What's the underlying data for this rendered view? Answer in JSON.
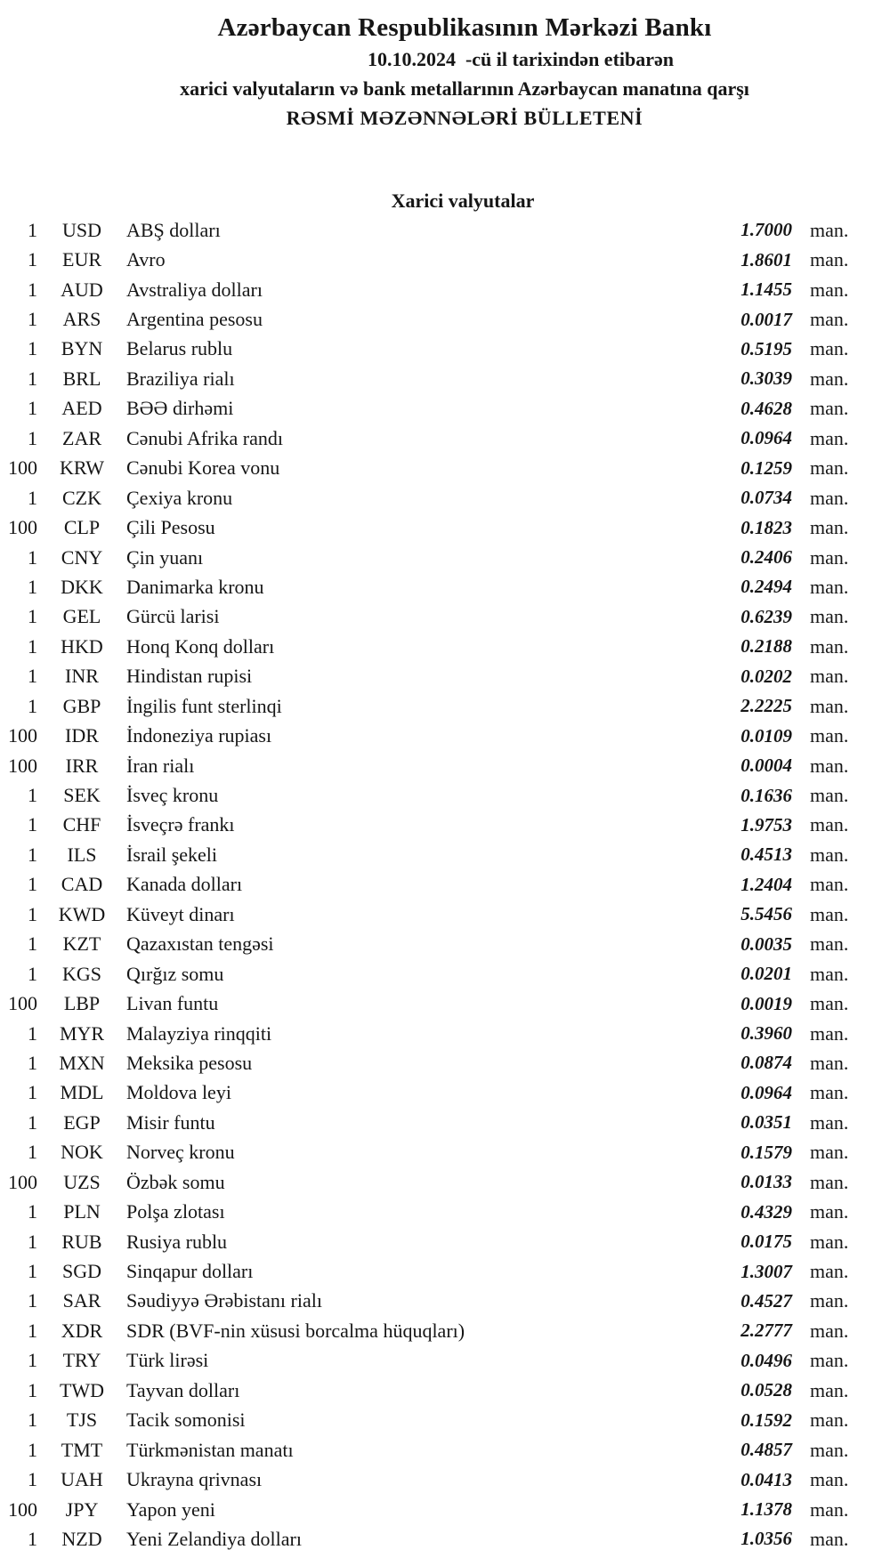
{
  "header": {
    "bank_name": "Azərbaycan Respublikasının Mərkəzi Bankı",
    "date_line": "10.10.2024  -cü il tarixindən etibarən",
    "subject_line": "xarici valyutaların və bank metallarının Azərbaycan manatına qarşı",
    "bulletin_line": "RƏSMİ MƏZƏNNƏLƏRİ BÜLLETENİ"
  },
  "section": {
    "title": "Xarici valyutalar"
  },
  "unit_suffix": "man.",
  "rates": [
    {
      "qty": "1",
      "code": "USD",
      "name": "ABŞ dolları",
      "rate": "1.7000"
    },
    {
      "qty": "1",
      "code": "EUR",
      "name": "Avro",
      "rate": "1.8601"
    },
    {
      "qty": "1",
      "code": "AUD",
      "name": "Avstraliya dolları",
      "rate": "1.1455"
    },
    {
      "qty": "1",
      "code": "ARS",
      "name": "Argentina pesosu",
      "rate": "0.0017"
    },
    {
      "qty": "1",
      "code": "BYN",
      "name": "Belarus rublu",
      "rate": "0.5195"
    },
    {
      "qty": "1",
      "code": "BRL",
      "name": "Braziliya rialı",
      "rate": "0.3039"
    },
    {
      "qty": "1",
      "code": "AED",
      "name": "BƏƏ dirhəmi",
      "rate": "0.4628"
    },
    {
      "qty": "1",
      "code": "ZAR",
      "name": "Cənubi Afrika randı",
      "rate": "0.0964"
    },
    {
      "qty": "100",
      "code": "KRW",
      "name": "Cənubi Korea vonu",
      "rate": "0.1259"
    },
    {
      "qty": "1",
      "code": "CZK",
      "name": "Çexiya kronu",
      "rate": "0.0734"
    },
    {
      "qty": "100",
      "code": "CLP",
      "name": "Çili Pesosu",
      "rate": "0.1823"
    },
    {
      "qty": "1",
      "code": "CNY",
      "name": "Çin yuanı",
      "rate": "0.2406"
    },
    {
      "qty": "1",
      "code": "DKK",
      "name": "Danimarka kronu",
      "rate": "0.2494"
    },
    {
      "qty": "1",
      "code": "GEL",
      "name": "Gürcü larisi",
      "rate": "0.6239"
    },
    {
      "qty": "1",
      "code": "HKD",
      "name": "Honq Konq dolları",
      "rate": "0.2188"
    },
    {
      "qty": "1",
      "code": "INR",
      "name": "Hindistan rupisi",
      "rate": "0.0202"
    },
    {
      "qty": "1",
      "code": "GBP",
      "name": "İngilis funt sterlinqi",
      "rate": "2.2225"
    },
    {
      "qty": "100",
      "code": "IDR",
      "name": "İndoneziya rupiası",
      "rate": "0.0109"
    },
    {
      "qty": "100",
      "code": "IRR",
      "name": "İran rialı",
      "rate": "0.0004"
    },
    {
      "qty": "1",
      "code": "SEK",
      "name": "İsveç kronu",
      "rate": "0.1636"
    },
    {
      "qty": "1",
      "code": "CHF",
      "name": "İsveçrə frankı",
      "rate": "1.9753"
    },
    {
      "qty": "1",
      "code": "ILS",
      "name": "İsrail şekeli",
      "rate": "0.4513"
    },
    {
      "qty": "1",
      "code": "CAD",
      "name": "Kanada dolları",
      "rate": "1.2404"
    },
    {
      "qty": "1",
      "code": "KWD",
      "name": "Küveyt dinarı",
      "rate": "5.5456"
    },
    {
      "qty": "1",
      "code": "KZT",
      "name": "Qazaxıstan tengəsi",
      "rate": "0.0035"
    },
    {
      "qty": "1",
      "code": "KGS",
      "name": "Qırğız somu",
      "rate": "0.0201"
    },
    {
      "qty": "100",
      "code": "LBP",
      "name": "Livan funtu",
      "rate": "0.0019"
    },
    {
      "qty": "1",
      "code": "MYR",
      "name": "Malayziya rinqqiti",
      "rate": "0.3960"
    },
    {
      "qty": "1",
      "code": "MXN",
      "name": "Meksika pesosu",
      "rate": "0.0874"
    },
    {
      "qty": "1",
      "code": "MDL",
      "name": "Moldova leyi",
      "rate": "0.0964"
    },
    {
      "qty": "1",
      "code": "EGP",
      "name": "Misir funtu",
      "rate": "0.0351"
    },
    {
      "qty": "1",
      "code": "NOK",
      "name": "Norveç kronu",
      "rate": "0.1579"
    },
    {
      "qty": "100",
      "code": "UZS",
      "name": "Özbək somu",
      "rate": "0.0133"
    },
    {
      "qty": "1",
      "code": "PLN",
      "name": "Polşa zlotası",
      "rate": "0.4329"
    },
    {
      "qty": "1",
      "code": "RUB",
      "name": "Rusiya rublu",
      "rate": "0.0175"
    },
    {
      "qty": "1",
      "code": "SGD",
      "name": "Sinqapur dolları",
      "rate": "1.3007"
    },
    {
      "qty": "1",
      "code": "SAR",
      "name": "Səudiyyə Ərəbistanı rialı",
      "rate": "0.4527"
    },
    {
      "qty": "1",
      "code": "XDR",
      "name": "SDR (BVF-nin xüsusi borcalma hüquqları)",
      "rate": "2.2777"
    },
    {
      "qty": "1",
      "code": "TRY",
      "name": "Türk lirəsi",
      "rate": "0.0496"
    },
    {
      "qty": "1",
      "code": "TWD",
      "name": "Tayvan dolları",
      "rate": "0.0528"
    },
    {
      "qty": "1",
      "code": "TJS",
      "name": "Tacik somonisi",
      "rate": "0.1592"
    },
    {
      "qty": "1",
      "code": "TMT",
      "name": "Türkmənistan manatı",
      "rate": "0.4857"
    },
    {
      "qty": "1",
      "code": "UAH",
      "name": "Ukrayna qrivnası",
      "rate": "0.0413"
    },
    {
      "qty": "100",
      "code": "JPY",
      "name": "Yapon yeni",
      "rate": "1.1378"
    },
    {
      "qty": "1",
      "code": "NZD",
      "name": "Yeni Zelandiya dolları",
      "rate": "1.0356"
    }
  ]
}
